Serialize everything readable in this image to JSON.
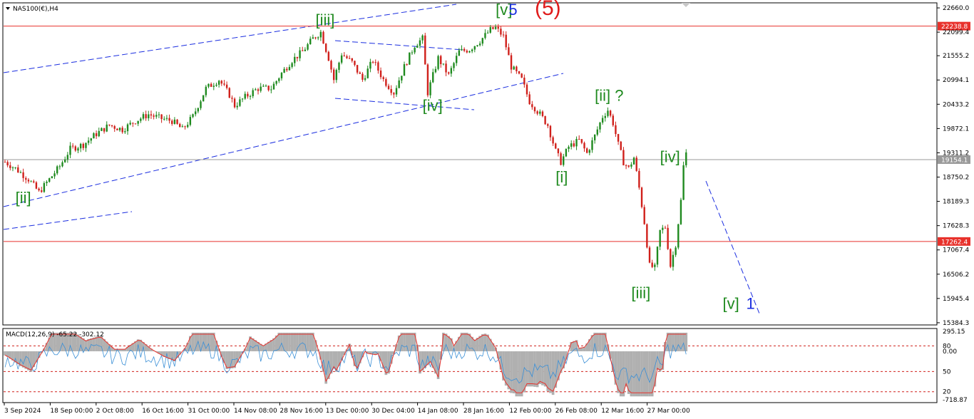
{
  "symbol_header": "NAS100(€),H4",
  "chart_data": {
    "type": "candlestick",
    "symbol": "NAS100(€)",
    "timeframe": "H4",
    "price_ticks": [
      "22660.0",
      "22099.4",
      "21555.2",
      "20994.1",
      "20433.2",
      "19872.1",
      "19311.2",
      "18750.2",
      "18189.3",
      "17628.3",
      "17067.4",
      "16506.2",
      "15945.4",
      "15384.3"
    ],
    "price_range": [
      15350,
      22760
    ],
    "time_ticks": [
      "3 Sep 2024",
      "18 Sep 00:00",
      "2 Oct 08:00",
      "16 Oct 16:00",
      "31 Oct 00:00",
      "14 Nov 08:00",
      "28 Nov 16:00",
      "13 Dec 00:00",
      "30 Dec 04:00",
      "14 Jan 08:00",
      "28 Jan 16:00",
      "12 Feb 00:00",
      "26 Feb 08:00",
      "12 Mar 16:00",
      "27 Mar 00:00"
    ],
    "price_path": [
      [
        0,
        19100
      ],
      [
        4,
        18950
      ],
      [
        9,
        18700
      ],
      [
        13,
        18400
      ],
      [
        17,
        18700
      ],
      [
        21,
        19000
      ],
      [
        25,
        19400
      ],
      [
        30,
        19500
      ],
      [
        35,
        19750
      ],
      [
        40,
        19950
      ],
      [
        45,
        19850
      ],
      [
        50,
        20050
      ],
      [
        55,
        20200
      ],
      [
        60,
        20100
      ],
      [
        64,
        20050
      ],
      [
        68,
        19850
      ],
      [
        72,
        20150
      ],
      [
        77,
        20800
      ],
      [
        82,
        21000
      ],
      [
        86,
        20650
      ],
      [
        88,
        20400
      ],
      [
        92,
        20600
      ],
      [
        97,
        20800
      ],
      [
        102,
        20800
      ],
      [
        106,
        21150
      ],
      [
        110,
        21450
      ],
      [
        114,
        21650
      ],
      [
        118,
        21950
      ],
      [
        121,
        22100
      ],
      [
        124,
        21500
      ],
      [
        126,
        21000
      ],
      [
        129,
        21600
      ],
      [
        133,
        21400
      ],
      [
        137,
        21000
      ],
      [
        141,
        21450
      ],
      [
        145,
        21000
      ],
      [
        149,
        20700
      ],
      [
        153,
        21300
      ],
      [
        157,
        21800
      ],
      [
        160,
        21950
      ],
      [
        162,
        20700
      ],
      [
        166,
        21500
      ],
      [
        170,
        21100
      ],
      [
        174,
        21650
      ],
      [
        178,
        21700
      ],
      [
        182,
        21900
      ],
      [
        186,
        22150
      ],
      [
        188,
        22200
      ],
      [
        191,
        22000
      ],
      [
        194,
        21300
      ],
      [
        198,
        21000
      ],
      [
        201,
        20500
      ],
      [
        205,
        20200
      ],
      [
        208,
        19950
      ],
      [
        211,
        19350
      ],
      [
        213,
        19100
      ],
      [
        216,
        19450
      ],
      [
        220,
        19600
      ],
      [
        223,
        19300
      ],
      [
        226,
        19700
      ],
      [
        229,
        20150
      ],
      [
        231,
        20300
      ],
      [
        233,
        20000
      ],
      [
        235,
        19500
      ],
      [
        237,
        19100
      ],
      [
        239,
        18950
      ],
      [
        241,
        19200
      ],
      [
        243,
        18500
      ],
      [
        245,
        17700
      ],
      [
        247,
        16700
      ],
      [
        249,
        16650
      ],
      [
        251,
        17500
      ],
      [
        253,
        17600
      ],
      [
        255,
        16700
      ],
      [
        257,
        17200
      ],
      [
        259,
        18200
      ],
      [
        260,
        19000
      ],
      [
        261,
        19300
      ]
    ],
    "price_points": 262,
    "horizontal_levels": [
      {
        "price": 22238.8,
        "label": "22238.8",
        "color": "#e8322c"
      },
      {
        "price": 17262.4,
        "label": "17262.4",
        "color": "#e8322c"
      },
      {
        "price": 19154.1,
        "label": "19154.1",
        "color": "#9a9a9a"
      }
    ],
    "wave_labels": [
      {
        "text": "[ii]",
        "color": "#1f8a1f",
        "index": 4,
        "price": 18150
      },
      {
        "text": "[iii]",
        "color": "#1f8a1f",
        "index": 119,
        "price": 22260
      },
      {
        "text": "[iv]",
        "color": "#1f8a1f",
        "index": 160,
        "price": 20280
      },
      {
        "text": "[v]",
        "color": "#1f8a1f",
        "index": 188,
        "price": 22500
      },
      {
        "text": "5",
        "color": "#1b2ee0",
        "index": 193,
        "price": 22500
      },
      {
        "text": "(5)",
        "color": "#e01b1b",
        "index": 203,
        "price": 22500
      },
      {
        "text": "[i]",
        "color": "#1f8a1f",
        "index": 211,
        "price": 18630
      },
      {
        "text": "[ii] ?",
        "color": "#1f8a1f",
        "index": 226,
        "price": 20510
      },
      {
        "text": "[iii]",
        "color": "#1f8a1f",
        "index": 240,
        "price": 15950
      },
      {
        "text": "[iv]",
        "color": "#1f8a1f",
        "index": 251,
        "price": 19100
      },
      {
        "text": "[v]",
        "color": "#1f8a1f",
        "index": 275,
        "price": 15700
      },
      {
        "text": "1",
        "color": "#1b2ee0",
        "index": 284,
        "price": 15700
      }
    ],
    "macd": {
      "label": "MACD(12,26,9) -65.22 -302.12",
      "ticks": [
        "295.15",
        "80",
        "0.00",
        "50",
        "20",
        "-718.87"
      ],
      "range": [
        -718.87,
        295.15
      ],
      "signal_color": "#e8322c",
      "main_color": "#3a8fd6",
      "histogram_color": "#b0b0b0"
    }
  }
}
